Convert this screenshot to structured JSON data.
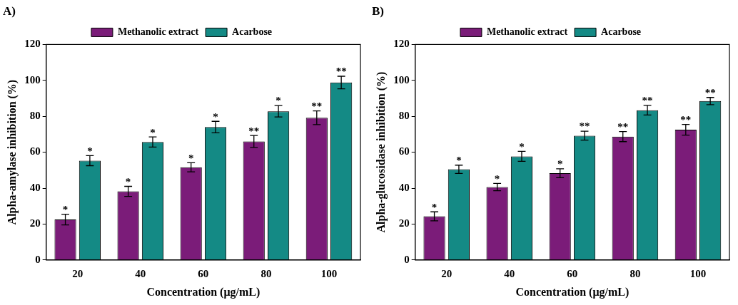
{
  "chart_data": [
    {
      "type": "bar",
      "title": "A)",
      "x_label": "Concentration (μg/mL)",
      "y_label": "Alpha-amylase inhibition (%)",
      "categories": [
        "20",
        "40",
        "60",
        "80",
        "100"
      ],
      "series": [
        {
          "name": "Methanolic extract",
          "color": "#7b1c79",
          "values": [
            22.5,
            38.2,
            51.6,
            66.0,
            79.2
          ],
          "errors": [
            3.0,
            2.8,
            2.5,
            3.3,
            3.8
          ],
          "significance": [
            "*",
            "*",
            "*",
            "**",
            "**"
          ]
        },
        {
          "name": "Acarbose",
          "color": "#148a85",
          "values": [
            55.3,
            65.7,
            74.0,
            82.8,
            98.8
          ],
          "errors": [
            2.8,
            2.8,
            3.2,
            3.2,
            3.5
          ],
          "significance": [
            "*",
            "*",
            "*",
            "*",
            "**"
          ]
        }
      ],
      "ylim": [
        0,
        120
      ],
      "yticks": [
        0,
        20,
        40,
        60,
        80,
        100,
        120
      ],
      "grid": false,
      "legend": "top"
    },
    {
      "type": "bar",
      "title": "B)",
      "x_label": "Concentration (μg/mL)",
      "y_label": "Alpha-glucosidase inhibition (%)",
      "categories": [
        "20",
        "40",
        "60",
        "80",
        "100"
      ],
      "series": [
        {
          "name": "Methanolic extract",
          "color": "#7b1c79",
          "values": [
            24.3,
            40.6,
            48.3,
            68.7,
            72.5
          ],
          "errors": [
            2.5,
            2.0,
            2.5,
            2.8,
            3.0
          ],
          "significance": [
            "*",
            "*",
            "*",
            "**",
            "**"
          ]
        },
        {
          "name": "Acarbose",
          "color": "#148a85",
          "values": [
            50.5,
            57.7,
            69.2,
            83.4,
            88.5
          ],
          "errors": [
            2.3,
            2.8,
            2.5,
            2.7,
            2.0
          ],
          "significance": [
            "*",
            "*",
            "**",
            "**",
            "**"
          ]
        }
      ],
      "ylim": [
        0,
        120
      ],
      "yticks": [
        0,
        20,
        40,
        60,
        80,
        100,
        120
      ],
      "grid": false,
      "legend": "top"
    }
  ]
}
